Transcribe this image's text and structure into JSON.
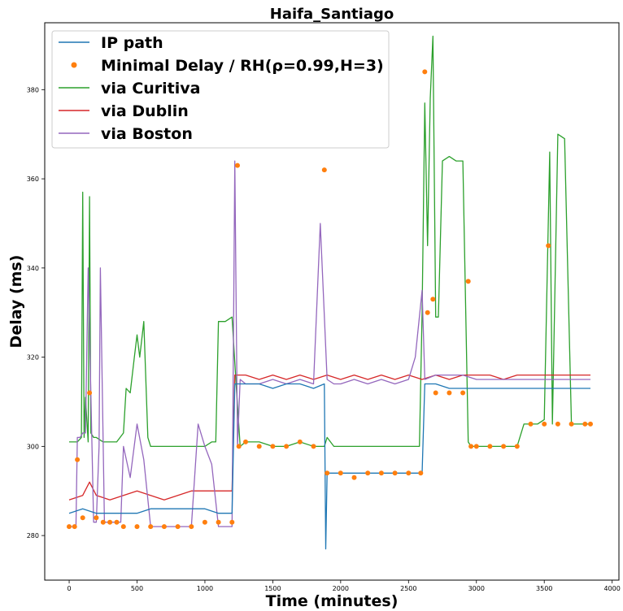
{
  "chart_data": {
    "type": "line",
    "title": "Haifa_Santiago",
    "xlabel": "Time (minutes)",
    "ylabel": "Delay (ms)",
    "xlim": [
      -180,
      4050
    ],
    "ylim": [
      270,
      395
    ],
    "xticks": [
      0,
      500,
      1000,
      1500,
      2000,
      2500,
      3000,
      3500,
      4000
    ],
    "yticks": [
      280,
      300,
      320,
      340,
      360,
      380
    ],
    "grid": false,
    "legend_position": "top-left",
    "series": [
      {
        "name": "via Curitiva",
        "color": "#2ca02c",
        "style": "line",
        "x": [
          0,
          60,
          90,
          100,
          110,
          120,
          140,
          150,
          160,
          180,
          200,
          250,
          300,
          350,
          400,
          420,
          450,
          480,
          500,
          520,
          550,
          580,
          600,
          700,
          800,
          900,
          1000,
          1050,
          1080,
          1100,
          1150,
          1200,
          1230,
          1260,
          1300,
          1400,
          1500,
          1600,
          1700,
          1800,
          1880,
          1900,
          1950,
          2000,
          2100,
          2200,
          2300,
          2400,
          2500,
          2580,
          2600,
          2620,
          2640,
          2660,
          2680,
          2700,
          2720,
          2750,
          2800,
          2850,
          2900,
          2940,
          2960,
          3000,
          3100,
          3200,
          3300,
          3350,
          3400,
          3450,
          3500,
          3540,
          3560,
          3600,
          3650,
          3700,
          3750,
          3800,
          3840
        ],
        "y": [
          301,
          301,
          302,
          357,
          302,
          311,
          301,
          356,
          303,
          302,
          302,
          301,
          301,
          301,
          303,
          313,
          312,
          320,
          325,
          320,
          328,
          302,
          300,
          300,
          300,
          300,
          300,
          301,
          301,
          328,
          328,
          329,
          314,
          300,
          301,
          301,
          300,
          300,
          301,
          300,
          300,
          302,
          300,
          300,
          300,
          300,
          300,
          300,
          300,
          300,
          330,
          377,
          345,
          378,
          392,
          329,
          329,
          364,
          365,
          364,
          364,
          301,
          300,
          300,
          300,
          300,
          300,
          305,
          305,
          305,
          306,
          366,
          305,
          370,
          369,
          305,
          305,
          305,
          305
        ]
      },
      {
        "name": "via Dublin",
        "color": "#d62728",
        "style": "line",
        "x": [
          0,
          100,
          150,
          200,
          300,
          400,
          500,
          600,
          700,
          800,
          900,
          1000,
          1100,
          1200,
          1220,
          1240,
          1300,
          1400,
          1500,
          1600,
          1700,
          1800,
          1900,
          2000,
          2100,
          2200,
          2300,
          2400,
          2500,
          2600,
          2700,
          2800,
          2900,
          3000,
          3100,
          3200,
          3300,
          3400,
          3500,
          3600,
          3700,
          3800,
          3840
        ],
        "y": [
          288,
          289,
          292,
          289,
          288,
          289,
          290,
          289,
          288,
          289,
          290,
          290,
          290,
          290,
          316,
          316,
          316,
          315,
          316,
          315,
          316,
          315,
          316,
          315,
          316,
          315,
          316,
          315,
          316,
          315,
          316,
          315,
          316,
          316,
          316,
          315,
          316,
          316,
          316,
          316,
          316,
          316,
          316
        ]
      },
      {
        "name": "via Boston",
        "color": "#9467bd",
        "style": "line",
        "x": [
          0,
          50,
          60,
          80,
          100,
          120,
          140,
          180,
          200,
          220,
          230,
          260,
          300,
          340,
          380,
          400,
          450,
          500,
          550,
          600,
          700,
          800,
          900,
          950,
          1000,
          1050,
          1100,
          1150,
          1200,
          1220,
          1240,
          1260,
          1300,
          1400,
          1500,
          1600,
          1700,
          1800,
          1850,
          1900,
          1950,
          2000,
          2100,
          2200,
          2300,
          2400,
          2500,
          2550,
          2600,
          2620,
          2700,
          2800,
          2900,
          3000,
          3100,
          3200,
          3300,
          3400,
          3500,
          3600,
          3700,
          3800,
          3840
        ],
        "y": [
          282,
          282,
          302,
          302,
          303,
          303,
          340,
          283,
          283,
          300,
          340,
          283,
          283,
          283,
          283,
          300,
          293,
          305,
          297,
          282,
          282,
          282,
          282,
          305,
          300,
          296,
          282,
          282,
          282,
          364,
          300,
          315,
          314,
          314,
          315,
          314,
          315,
          314,
          350,
          315,
          314,
          314,
          315,
          314,
          315,
          314,
          315,
          320,
          335,
          315,
          316,
          316,
          316,
          315,
          315,
          315,
          315,
          315,
          315,
          315,
          315,
          315,
          315
        ]
      },
      {
        "name": "IP path",
        "color": "#1f77b4",
        "style": "line",
        "x": [
          0,
          100,
          200,
          300,
          400,
          500,
          600,
          700,
          800,
          900,
          1000,
          1100,
          1200,
          1220,
          1300,
          1400,
          1500,
          1600,
          1700,
          1800,
          1880,
          1890,
          1900,
          2000,
          2100,
          2200,
          2300,
          2400,
          2500,
          2600,
          2620,
          2700,
          2800,
          2900,
          3000,
          3100,
          3200,
          3300,
          3400,
          3500,
          3600,
          3700,
          3800,
          3840
        ],
        "y": [
          285,
          286,
          285,
          285,
          285,
          285,
          286,
          286,
          286,
          286,
          286,
          285,
          285,
          314,
          314,
          314,
          313,
          314,
          314,
          313,
          314,
          277,
          294,
          294,
          294,
          294,
          294,
          294,
          294,
          294,
          314,
          314,
          313,
          313,
          313,
          313,
          313,
          313,
          313,
          313,
          313,
          313,
          313,
          313
        ]
      },
      {
        "name": "Minimal Delay / RH(ρ=0.99,H=3)",
        "color": "#ff7f0e",
        "style": "markers",
        "x": [
          0,
          40,
          60,
          100,
          150,
          200,
          250,
          300,
          350,
          400,
          500,
          600,
          700,
          800,
          900,
          1000,
          1100,
          1200,
          1240,
          1250,
          1300,
          1400,
          1500,
          1600,
          1700,
          1800,
          1880,
          1900,
          2000,
          2100,
          2200,
          2300,
          2400,
          2500,
          2590,
          2620,
          2640,
          2680,
          2700,
          2800,
          2900,
          2940,
          2960,
          3000,
          3100,
          3200,
          3300,
          3400,
          3500,
          3530,
          3600,
          3700,
          3800,
          3840
        ],
        "y": [
          282,
          282,
          297,
          284,
          312,
          284,
          283,
          283,
          283,
          282,
          282,
          282,
          282,
          282,
          282,
          283,
          283,
          283,
          363,
          300,
          301,
          300,
          300,
          300,
          301,
          300,
          362,
          294,
          294,
          293,
          294,
          294,
          294,
          294,
          294,
          384,
          330,
          333,
          312,
          312,
          312,
          337,
          300,
          300,
          300,
          300,
          300,
          305,
          305,
          345,
          305,
          305,
          305,
          305
        ]
      }
    ]
  }
}
